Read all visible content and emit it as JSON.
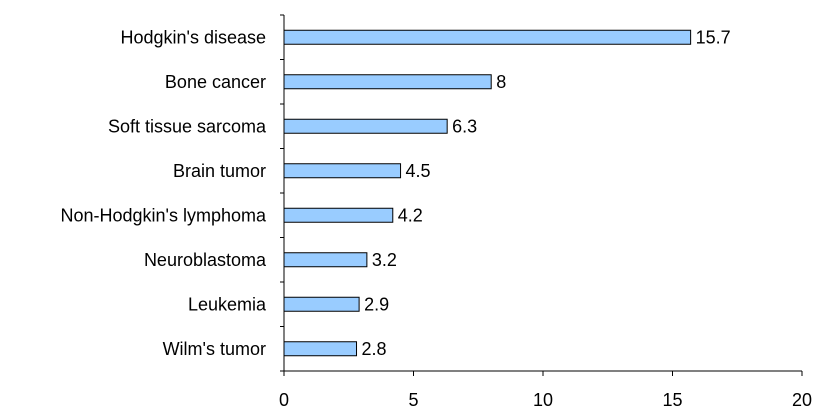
{
  "chart_data": {
    "type": "bar",
    "orientation": "horizontal",
    "title": "",
    "xlabel": "",
    "ylabel": "",
    "categories": [
      "Hodgkin's disease",
      "Bone cancer",
      "Soft tissue sarcoma",
      "Brain tumor",
      "Non-Hodgkin's lymphoma",
      "Neuroblastoma",
      "Leukemia",
      "Wilm's tumor"
    ],
    "values": [
      15.7,
      8,
      6.3,
      4.5,
      4.2,
      3.2,
      2.9,
      2.8
    ],
    "value_labels": [
      "15.7",
      "8",
      "6.3",
      "4.5",
      "4.2",
      "3.2",
      "2.9",
      "2.8"
    ],
    "xlim": [
      0,
      20
    ],
    "x_ticks": [
      0,
      5,
      10,
      15,
      20
    ],
    "x_tick_labels": [
      "0",
      "5",
      "10",
      "15",
      "20"
    ],
    "grid": false,
    "legend": "none",
    "colors": {
      "bar_fill": "#99ccff",
      "bar_stroke": "#000000",
      "axis": "#000000",
      "text": "#000000",
      "background": "#ffffff"
    }
  }
}
